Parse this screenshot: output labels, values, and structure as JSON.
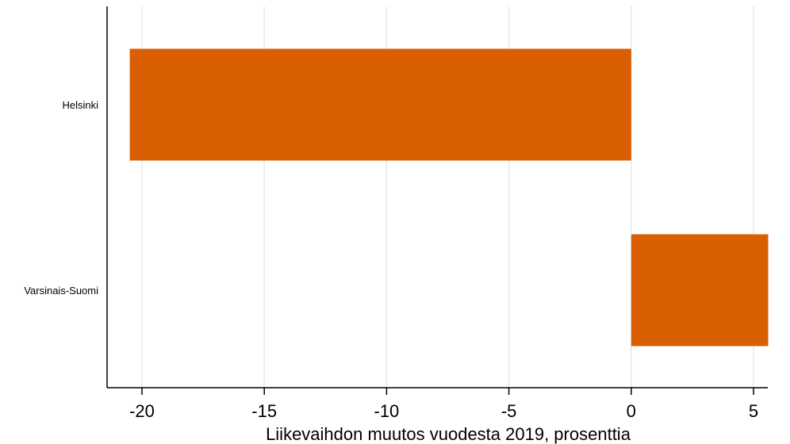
{
  "chart_data": {
    "type": "bar",
    "orientation": "horizontal",
    "title": "",
    "categories": [
      "Helsinki",
      "Varsinais-Suomi"
    ],
    "values": [
      -20.5,
      5.6
    ],
    "xlabel": "Liikevaihdon muutos vuodesta 2019, prosenttia",
    "ylabel": "",
    "xticks": [
      "-20",
      "-15",
      "-10",
      "-5",
      "0",
      "5"
    ],
    "xtick_values": [
      -20,
      -15,
      -10,
      -5,
      0,
      5
    ],
    "xlim": [
      -21.5,
      6.5
    ],
    "grid": "vertical",
    "bar_color": "#d95f02",
    "grid_color": "#e1ece9"
  }
}
